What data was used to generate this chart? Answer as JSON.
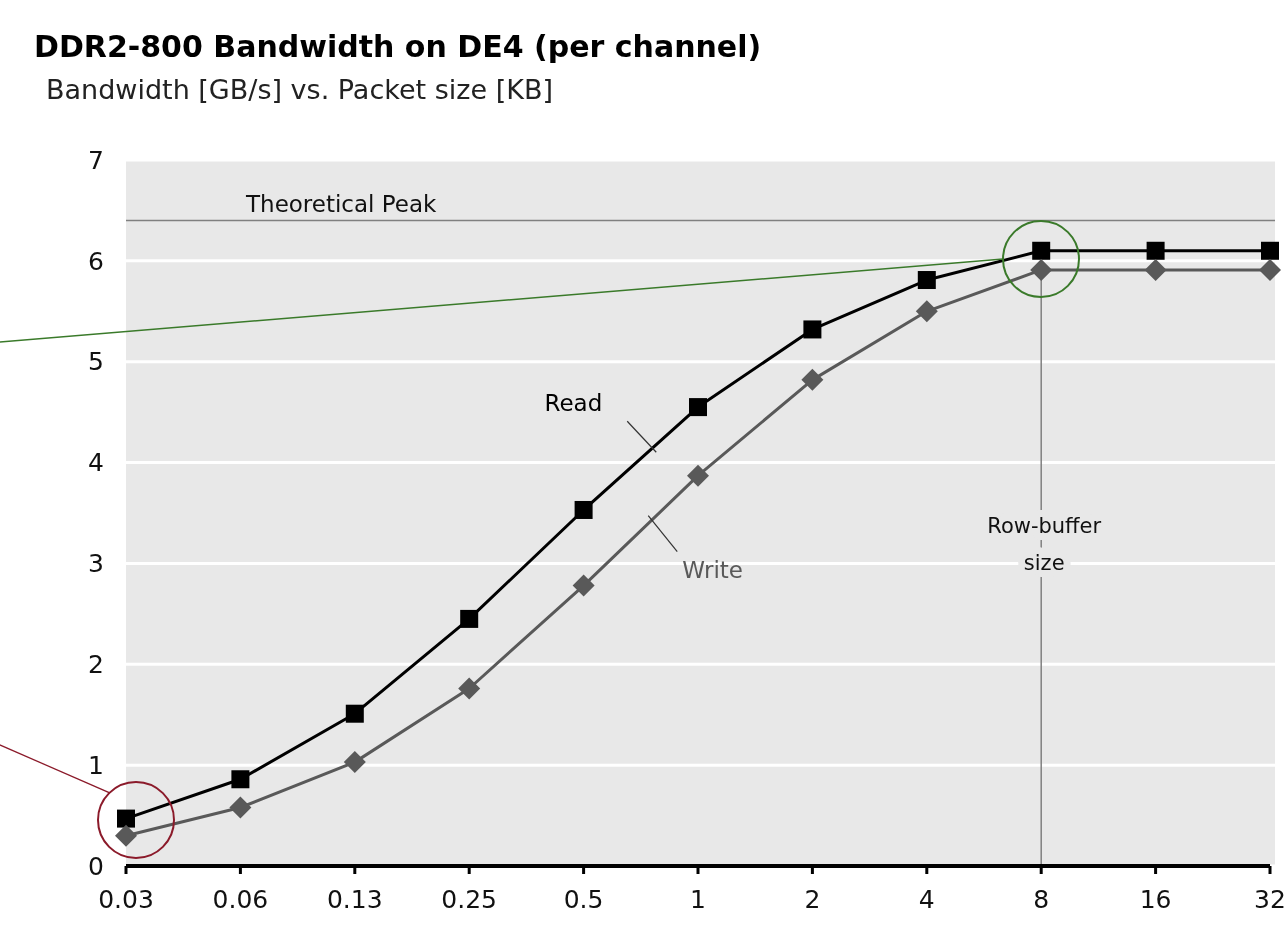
{
  "chart_data": {
    "type": "line",
    "title": "DDR2-800 Bandwidth on DE4 (per channel)",
    "subtitle": "Bandwidth [GB/s] vs. Packet size [KB]",
    "categories": [
      "0.03",
      "0.06",
      "0.13",
      "0.25",
      "0.5",
      "1",
      "2",
      "4",
      "8",
      "16",
      "32"
    ],
    "series": [
      {
        "name": "Read",
        "color": "#000000",
        "marker": "square",
        "values": [
          0.47,
          0.86,
          1.51,
          2.45,
          3.53,
          4.55,
          5.32,
          5.81,
          6.1,
          6.1,
          6.1
        ]
      },
      {
        "name": "Write",
        "color": "#595959",
        "marker": "diamond",
        "values": [
          0.3,
          0.58,
          1.03,
          1.76,
          2.78,
          3.87,
          4.82,
          5.5,
          5.91,
          5.91,
          5.91
        ]
      }
    ],
    "ylim": [
      0,
      7
    ],
    "yticks": [
      0,
      1,
      2,
      3,
      4,
      5,
      6,
      7
    ],
    "grid": "y",
    "legend": false,
    "ref_lines": [
      {
        "axis": "y",
        "value": 6.4,
        "label": "Theoretical Peak",
        "color": "#808080"
      },
      {
        "axis": "x",
        "value": "8",
        "label": "Row-buffer size",
        "color": "#808080"
      }
    ]
  }
}
